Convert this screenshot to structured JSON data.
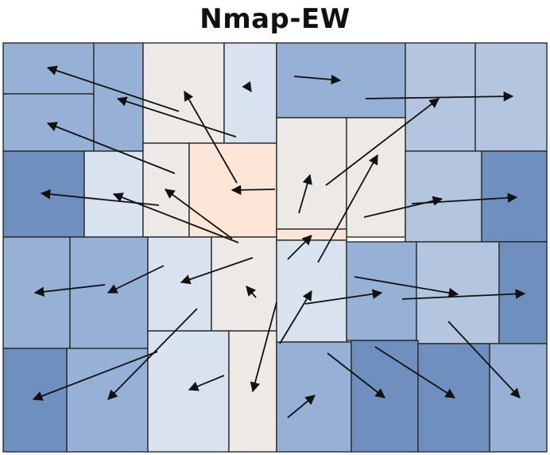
{
  "title": "Nmap-EW",
  "palette": {
    "blue-light": "#d9e2ef",
    "blue-soft": "#b4c6df",
    "blue-mid": "#97b0d5",
    "blue-deep": "#6f8fbf",
    "neutral": "#ece9e6",
    "peach": "#fde5d7",
    "border": "#2b2b2b",
    "arrow": "#111111"
  }
}
